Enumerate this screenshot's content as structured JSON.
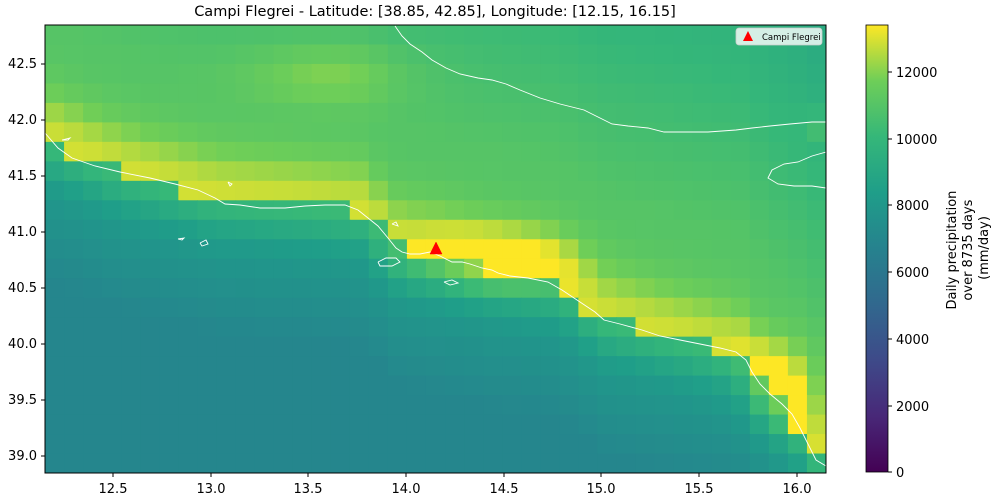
{
  "title": "Campi Flegrei - Latitude: [38.85, 42.85], Longitude: [12.15, 16.15]",
  "chart_data": {
    "type": "heatmap",
    "title": "Campi Flegrei - Latitude: [38.85, 42.85], Longitude: [12.15, 16.15]",
    "xlim": [
      12.15,
      16.15
    ],
    "ylim": [
      38.85,
      42.85
    ],
    "x_ticks": [
      "12.5",
      "13.0",
      "13.5",
      "14.0",
      "14.5",
      "15.0",
      "15.5",
      "16.0"
    ],
    "y_ticks": [
      "39.0",
      "39.5",
      "40.0",
      "40.5",
      "41.0",
      "41.5",
      "42.0",
      "42.5"
    ],
    "colormap": "viridis",
    "colorbar": {
      "label_lines": [
        "Daily precipitation",
        "over 8735 days",
        "(mm/day)"
      ],
      "range": [
        0,
        13400
      ],
      "ticks": [
        "0",
        "2000",
        "4000",
        "6000",
        "8000",
        "10000",
        "12000"
      ]
    },
    "marker": {
      "name": "Campi Flegrei",
      "lon": 14.15,
      "lat": 40.85,
      "symbol": "triangle",
      "color": "#ff0000"
    },
    "legend": {
      "label": "Campi Flegrei",
      "position": "top-right"
    },
    "grid": false,
    "field_description_value_range": [
      6500,
      13400
    ]
  }
}
